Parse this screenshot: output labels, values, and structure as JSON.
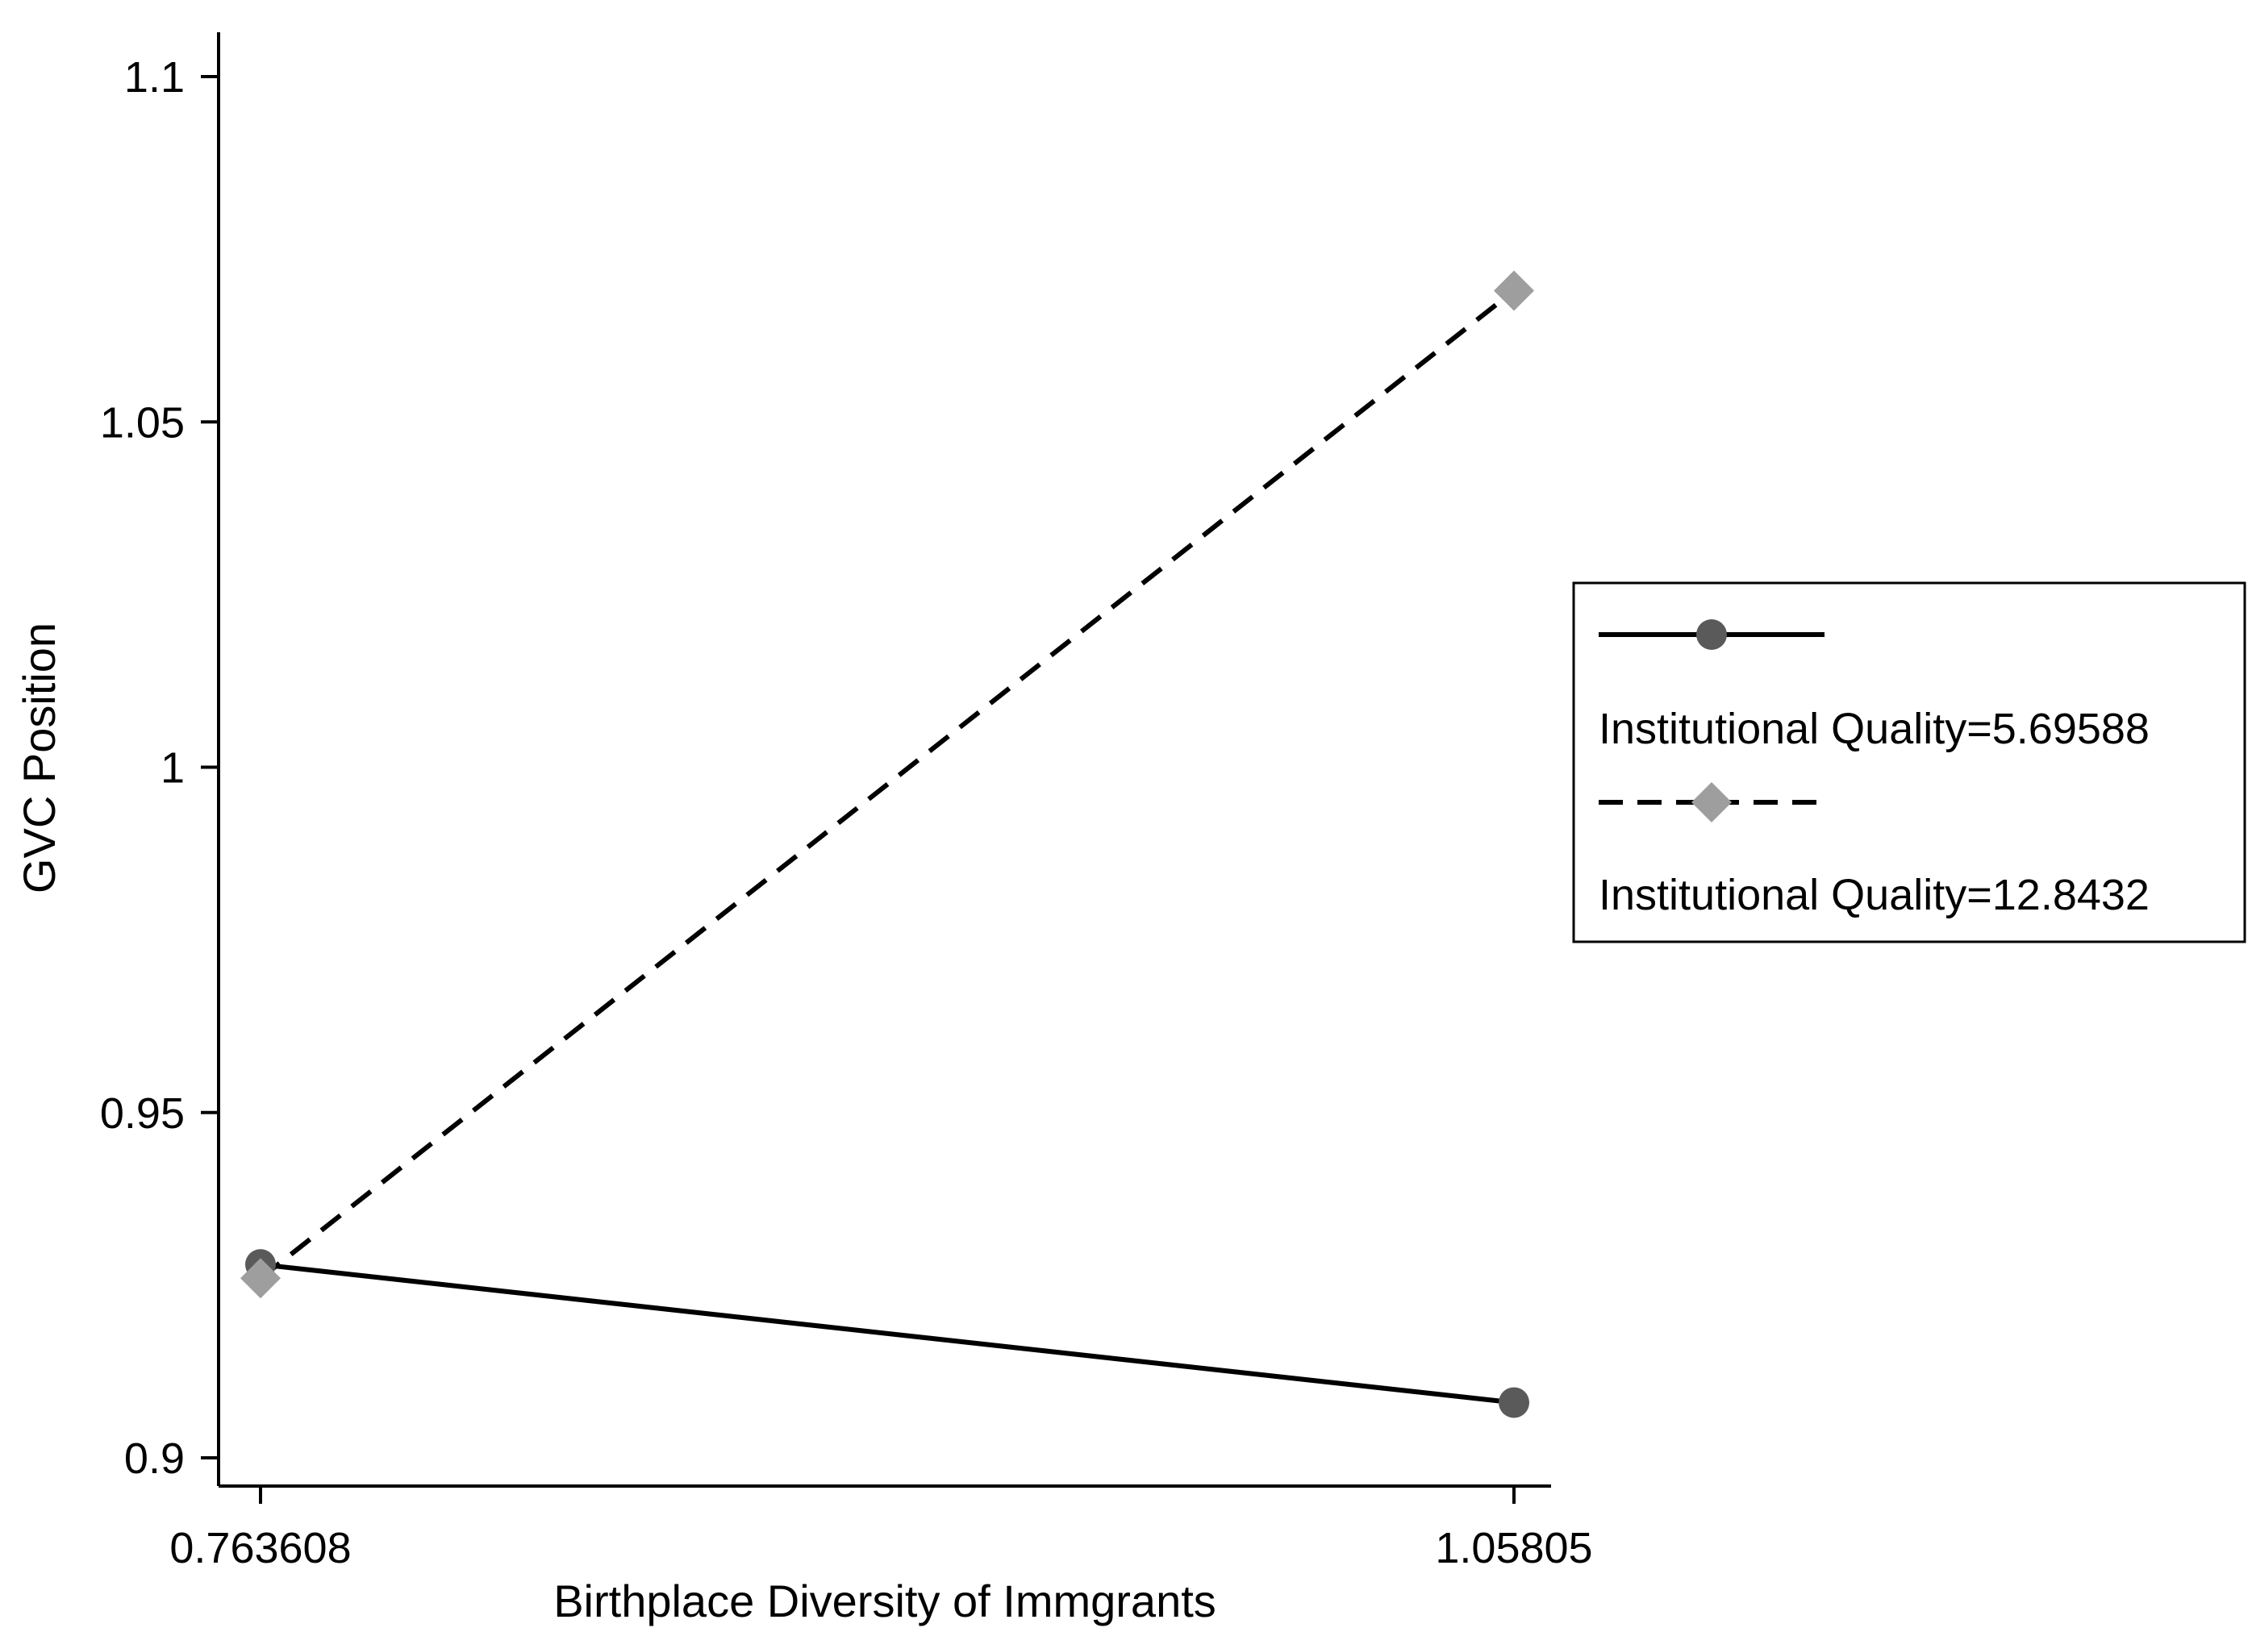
{
  "chart_data": {
    "type": "line",
    "title": "",
    "xlabel": "Birthplace Diversity of Immgrants",
    "ylabel": "GVC Position",
    "x_tick_labels": [
      "0.763608",
      "1.05805"
    ],
    "y_ticks": [
      0.9,
      0.95,
      1,
      1.05,
      1.1
    ],
    "y_tick_labels": [
      "0.9",
      "0.95",
      "1",
      "1.05",
      "1.1"
    ],
    "ylim": [
      0.9,
      1.1
    ],
    "x": [
      0.763608,
      1.05805
    ],
    "series": [
      {
        "name": "Institutional Quality=5.69588",
        "values": [
          0.928,
          0.908
        ],
        "line_style": "solid",
        "marker": "circle",
        "color": "#5a5a5a"
      },
      {
        "name": "Institutional Quality=12.8432",
        "values": [
          0.926,
          1.069
        ],
        "line_style": "dashed",
        "marker": "diamond",
        "color": "#9e9e9e"
      }
    ],
    "grid": false,
    "legend_position": "right"
  }
}
